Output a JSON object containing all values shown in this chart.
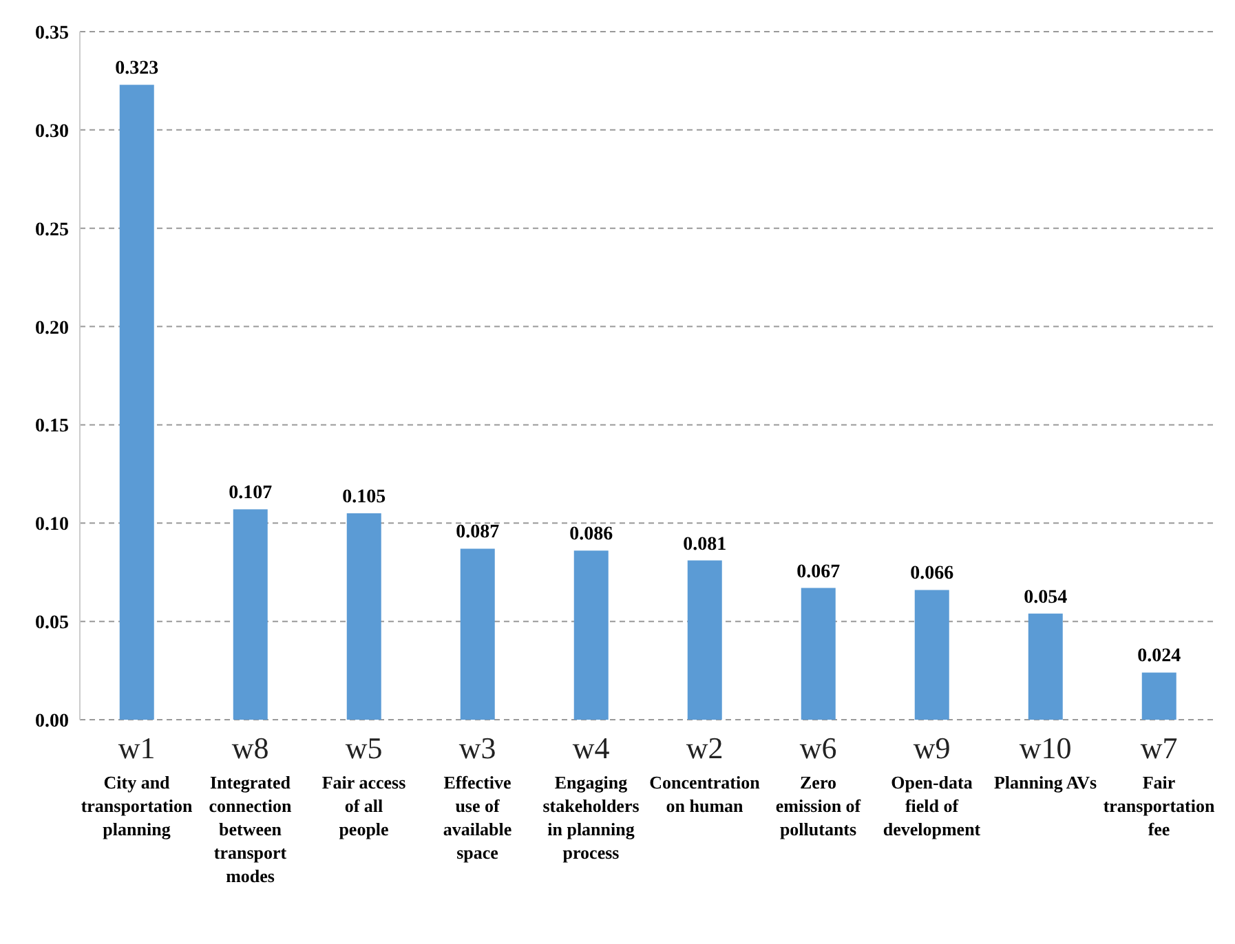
{
  "chart_data": {
    "type": "bar",
    "categories": [
      "w1\nCity and transportation planning",
      "w8\nIntegrated connection between transport modes",
      "w5\nFair access of all people",
      "w3\nEffective use of available space",
      "w4\nEngaging stakeholders in planning process",
      "w2\nConcentration on human",
      "w6\nZero emission of pollutants",
      "w9\nOpen-data field of development",
      "w10\nPlanning AVs",
      "w7\nFair transportation fee"
    ],
    "values": [
      0.323,
      0.107,
      0.105,
      0.087,
      0.086,
      0.081,
      0.067,
      0.066,
      0.054,
      0.024
    ],
    "color": "#5b9bd5",
    "ylim": [
      0,
      0.35
    ],
    "yticks": [
      {
        "value": 0,
        "label": "0.00"
      },
      {
        "value": 0.05,
        "label": "0.05"
      },
      {
        "value": 0.1,
        "label": "0.10"
      },
      {
        "value": 0.15,
        "label": "0.15"
      },
      {
        "value": 0.2,
        "label": "0.20"
      },
      {
        "value": 0.25,
        "label": "0.25"
      },
      {
        "value": 0.3,
        "label": "0.30"
      },
      {
        "value": 0.35,
        "label": "0.35"
      }
    ],
    "grid": "y",
    "data_labels": true
  }
}
